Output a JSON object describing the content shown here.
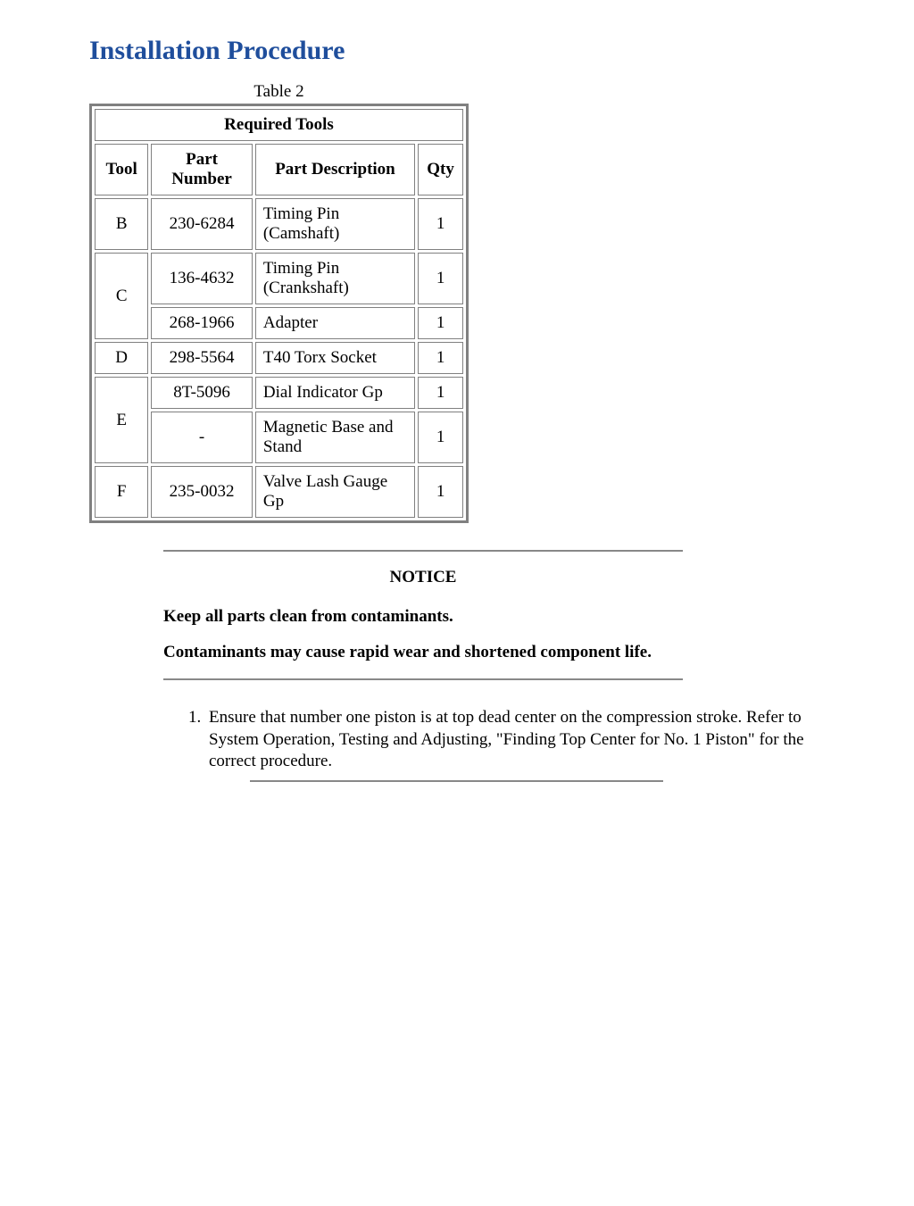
{
  "title": "Installation Procedure",
  "table": {
    "caption": "Table 2",
    "title": "Required Tools",
    "columns": [
      "Tool",
      "Part Number",
      "Part Description",
      "Qty"
    ],
    "rows": [
      {
        "tool": "B",
        "tool_rowspan": 1,
        "part_number": "230-6284",
        "description": "Timing Pin (Camshaft)",
        "qty": "1"
      },
      {
        "tool": "C",
        "tool_rowspan": 2,
        "part_number": "136-4632",
        "description": "Timing Pin (Crankshaft)",
        "qty": "1"
      },
      {
        "tool": null,
        "tool_rowspan": 0,
        "part_number": "268-1966",
        "description": "Adapter",
        "qty": "1"
      },
      {
        "tool": "D",
        "tool_rowspan": 1,
        "part_number": "298-5564",
        "description": "T40 Torx Socket",
        "qty": "1"
      },
      {
        "tool": "E",
        "tool_rowspan": 2,
        "part_number": "8T-5096",
        "description": "Dial Indicator Gp",
        "qty": "1"
      },
      {
        "tool": null,
        "tool_rowspan": 0,
        "part_number": "-",
        "description": "Magnetic Base and Stand",
        "qty": "1"
      },
      {
        "tool": "F",
        "tool_rowspan": 1,
        "part_number": "235-0032",
        "description": "Valve Lash Gauge Gp",
        "qty": "1"
      }
    ]
  },
  "notice": {
    "heading": "NOTICE",
    "lines": [
      "Keep all parts clean from contaminants.",
      "Contaminants may cause rapid wear and shortened component life."
    ]
  },
  "steps": [
    "Ensure that number one piston is at top dead center on the compression stroke. Refer to System Operation, Testing and Adjusting, \"Finding Top Center for No. 1 Piston\" for the correct procedure."
  ],
  "colors": {
    "title": "#1f4e9c",
    "rule": "#888888",
    "border": "#808080",
    "text": "#000000",
    "background": "#ffffff"
  }
}
